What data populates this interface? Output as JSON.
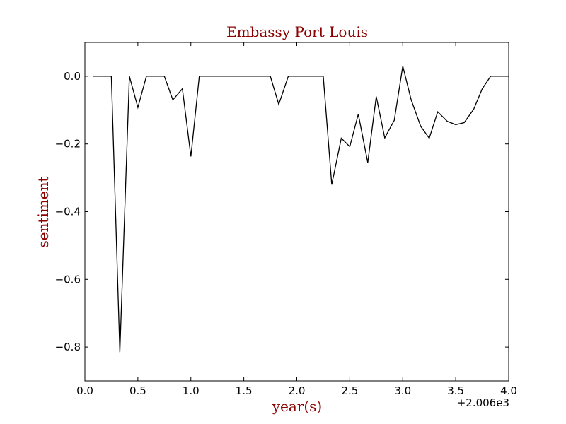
{
  "chart_data": {
    "type": "line",
    "title": "Embassy Port Louis",
    "xlabel": "year(s)",
    "ylabel": "sentiment",
    "x_offset_label": "+2.006e3",
    "xlim": [
      0.0,
      4.0
    ],
    "ylim": [
      -0.9,
      0.1
    ],
    "x_ticks": [
      0.0,
      0.5,
      1.0,
      1.5,
      2.0,
      2.5,
      3.0,
      3.5,
      4.0
    ],
    "x_tick_labels": [
      "0.0",
      "0.5",
      "1.0",
      "1.5",
      "2.0",
      "2.5",
      "3.0",
      "3.5",
      "4.0"
    ],
    "y_ticks": [
      0.0,
      -0.2,
      -0.4,
      -0.6,
      -0.8
    ],
    "y_tick_labels": [
      "0.0",
      "−0.2",
      "−0.4",
      "−0.6",
      "−0.8"
    ],
    "grid": false,
    "line_color": "#000000",
    "title_color": "#8b0000",
    "series": [
      {
        "x": [
          0.08,
          0.17,
          0.25,
          0.33,
          0.42,
          0.5,
          0.58,
          0.67,
          0.75,
          0.83,
          0.92,
          1.0,
          1.08,
          1.17,
          1.25,
          1.33,
          1.42,
          1.5,
          1.58,
          1.67,
          1.75,
          1.83,
          1.92,
          2.0,
          2.08,
          2.17,
          2.25,
          2.33,
          2.42,
          2.5,
          2.58,
          2.67,
          2.75,
          2.83,
          2.92,
          3.0,
          3.08,
          3.17,
          3.25,
          3.33,
          3.42,
          3.5,
          3.58,
          3.67,
          3.75,
          3.83,
          3.92,
          4.0
        ],
        "y": [
          0.0,
          0.0,
          0.0,
          -0.815,
          0.0,
          -0.092,
          0.0,
          0.0,
          0.0,
          -0.07,
          -0.037,
          -0.237,
          0.0,
          0.0,
          0.0,
          0.0,
          0.0,
          0.0,
          0.0,
          0.0,
          0.0,
          -0.083,
          0.0,
          0.0,
          0.0,
          0.0,
          0.0,
          -0.32,
          -0.183,
          -0.208,
          -0.112,
          -0.255,
          -0.06,
          -0.182,
          -0.13,
          0.03,
          -0.07,
          -0.148,
          -0.183,
          -0.105,
          -0.133,
          -0.143,
          -0.137,
          -0.097,
          -0.037,
          0.0,
          0.0,
          0.0
        ]
      }
    ]
  }
}
